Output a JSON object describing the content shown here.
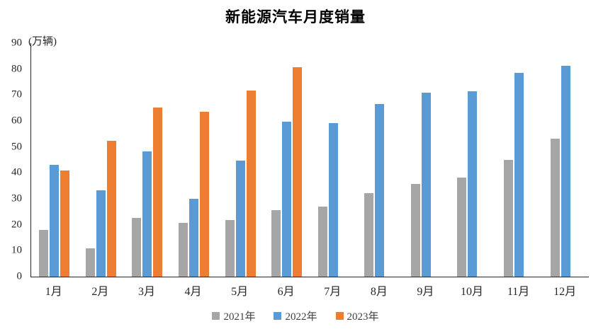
{
  "title": "新能源汽车月度销量",
  "unit_label": "(万辆)",
  "colors": {
    "series_2021": "#A6A6A6",
    "series_2022": "#5B9BD5",
    "series_2023": "#ED7D31",
    "axis": "#262626",
    "background": "#FFFFFF"
  },
  "legend": [
    {
      "label": "2021年",
      "color": "#A6A6A6"
    },
    {
      "label": "2022年",
      "color": "#5B9BD5"
    },
    {
      "label": "2023年",
      "color": "#ED7D31"
    }
  ],
  "chart_data": {
    "type": "bar",
    "title": "新能源汽车月度销量",
    "unit": "万辆",
    "xlabel": "",
    "ylabel": "(万辆)",
    "categories": [
      "1月",
      "2月",
      "3月",
      "4月",
      "5月",
      "6月",
      "7月",
      "8月",
      "9月",
      "10月",
      "11月",
      "12月"
    ],
    "series": [
      {
        "name": "2021年",
        "color": "#A6A6A6",
        "values": [
          17.9,
          11.0,
          22.6,
          20.6,
          21.7,
          25.6,
          27.1,
          32.1,
          35.7,
          38.3,
          45.0,
          53.1
        ]
      },
      {
        "name": "2022年",
        "color": "#5B9BD5",
        "values": [
          43.1,
          33.4,
          48.4,
          29.9,
          44.7,
          59.6,
          59.3,
          66.6,
          70.8,
          71.4,
          78.6,
          81.4
        ]
      },
      {
        "name": "2023年",
        "color": "#ED7D31",
        "values": [
          40.8,
          52.5,
          65.3,
          63.6,
          71.7,
          80.6,
          null,
          null,
          null,
          null,
          null,
          null
        ]
      }
    ],
    "ylim": [
      0,
      90
    ],
    "yticks": [
      0,
      10,
      20,
      30,
      40,
      50,
      60,
      70,
      80,
      90
    ],
    "grid": false,
    "legend_position": "bottom"
  }
}
